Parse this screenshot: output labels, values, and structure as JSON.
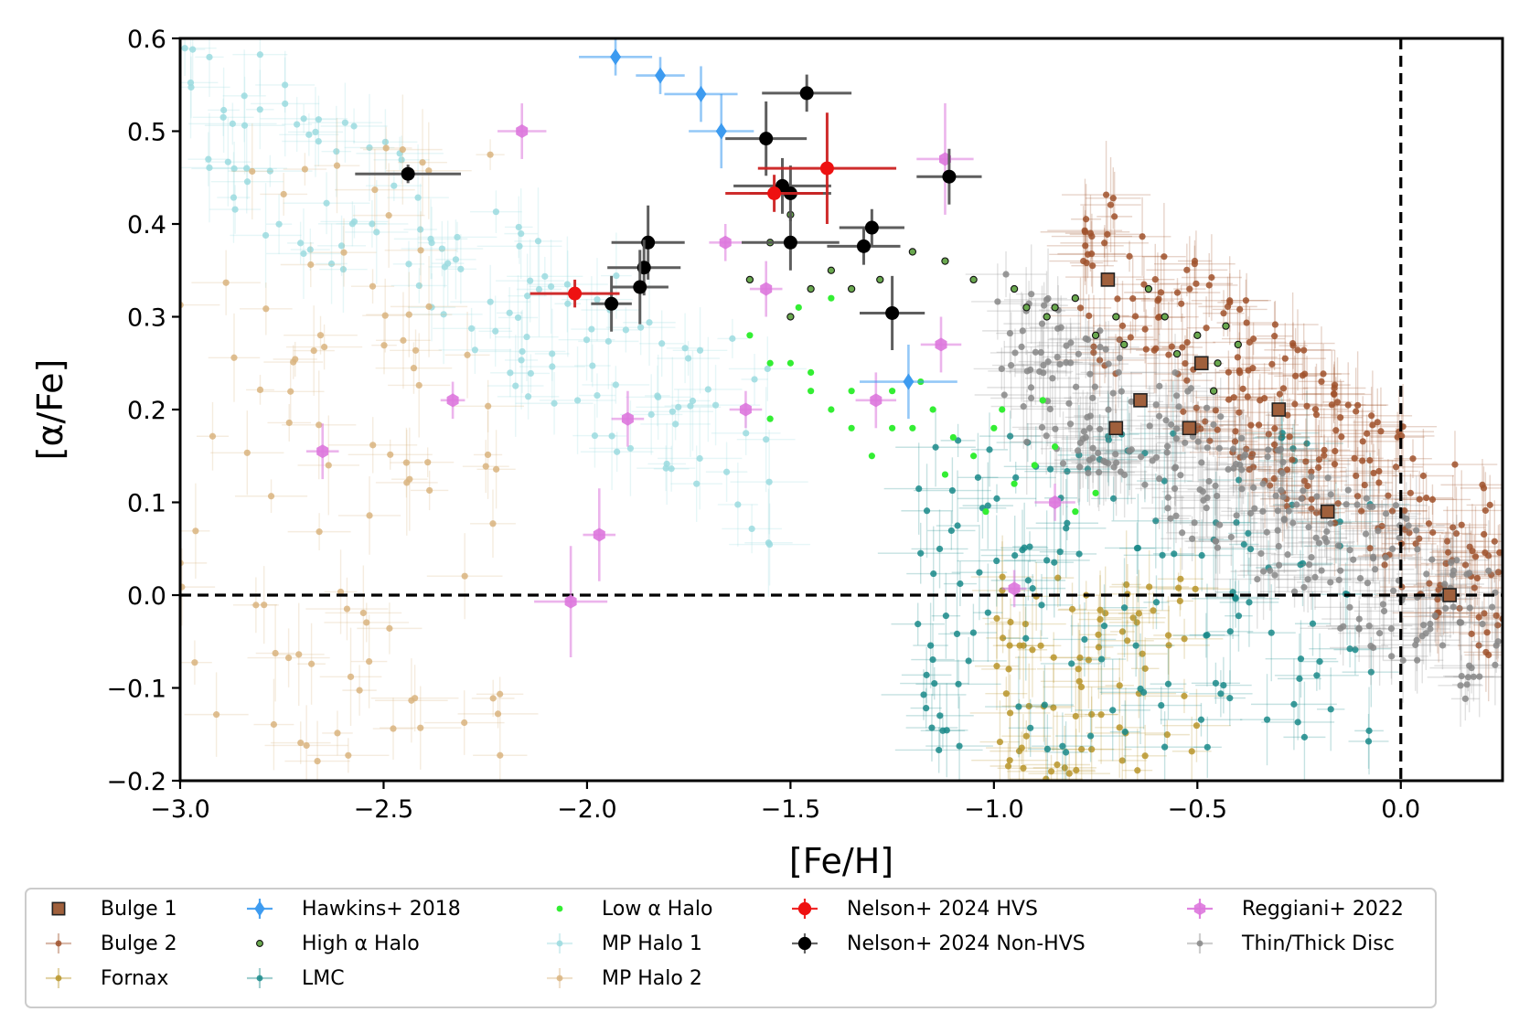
{
  "chart_data": {
    "type": "scatter",
    "title": "",
    "xlabel": "[Fe/H]",
    "ylabel": "[α/Fe]",
    "xlim": [
      -3.0,
      0.25
    ],
    "ylim": [
      -0.2,
      0.6
    ],
    "grid": false,
    "x_ticks": [
      -3.0,
      -2.5,
      -2.0,
      -1.5,
      -1.0,
      -0.5,
      0.0
    ],
    "x_tick_labels": [
      "−3.0",
      "−2.5",
      "−2.0",
      "−1.5",
      "−1.0",
      "−0.5",
      "0.0"
    ],
    "y_ticks": [
      -0.2,
      -0.1,
      0.0,
      0.1,
      0.2,
      0.3,
      0.4,
      0.5,
      0.6
    ],
    "y_tick_labels": [
      "−0.2",
      "−0.1",
      "0.0",
      "0.1",
      "0.2",
      "0.3",
      "0.4",
      "0.5",
      "0.6"
    ],
    "reference_lines": [
      {
        "orientation": "horizontal",
        "value": 0.0,
        "style": "dashed"
      },
      {
        "orientation": "vertical",
        "value": 0.0,
        "style": "dashed"
      }
    ],
    "legend_position": "below",
    "series": [
      {
        "name": "Bulge 1",
        "color": "#a0603c",
        "marker": "square",
        "points": [
          [
            -0.72,
            0.34
          ],
          [
            -0.49,
            0.25
          ],
          [
            -0.64,
            0.21
          ],
          [
            -0.3,
            0.2
          ],
          [
            -0.7,
            0.18
          ],
          [
            -0.52,
            0.18
          ],
          [
            -0.18,
            0.09
          ],
          [
            0.12,
            0.0
          ]
        ]
      },
      {
        "name": "Bulge 2",
        "color": "#a0522d",
        "marker": "circle-small",
        "cloud": {
          "x": [
            -0.8,
            0.25
          ],
          "y": [
            -0.02,
            0.4
          ],
          "count": 260,
          "seed": 11,
          "trend": "decreasing"
        }
      },
      {
        "name": "Fornax",
        "color": "#b8952a",
        "marker": "circle-small",
        "cloud": {
          "x": [
            -1.0,
            -0.5
          ],
          "y": [
            -0.2,
            0.02
          ],
          "count": 80,
          "seed": 23
        }
      },
      {
        "name": "Hawkins+ 2018",
        "color": "#3d9bf0",
        "marker": "diamond",
        "points": [
          [
            -1.93,
            0.58
          ],
          [
            -1.82,
            0.56
          ],
          [
            -1.72,
            0.54
          ],
          [
            -1.67,
            0.5
          ],
          [
            -1.21,
            0.23
          ]
        ],
        "xerr": [
          0.09,
          0.06,
          0.09,
          0.08,
          0.12
        ],
        "yerr": [
          0.02,
          0.02,
          0.03,
          0.04,
          0.04
        ]
      },
      {
        "name": "High α Halo",
        "color": "#6aa84f",
        "marker": "circle-outline",
        "points": [
          [
            -1.55,
            0.38
          ],
          [
            -1.5,
            0.41
          ],
          [
            -1.4,
            0.35
          ],
          [
            -1.35,
            0.33
          ],
          [
            -1.12,
            0.36
          ],
          [
            -1.05,
            0.34
          ],
          [
            -0.95,
            0.33
          ],
          [
            -0.85,
            0.31
          ],
          [
            -0.8,
            0.32
          ],
          [
            -0.75,
            0.28
          ],
          [
            -0.7,
            0.3
          ],
          [
            -0.68,
            0.27
          ],
          [
            -0.62,
            0.33
          ],
          [
            -0.58,
            0.3
          ],
          [
            -0.55,
            0.26
          ],
          [
            -0.5,
            0.28
          ],
          [
            -0.45,
            0.25
          ],
          [
            -0.46,
            0.22
          ],
          [
            -0.43,
            0.29
          ],
          [
            -0.4,
            0.27
          ],
          [
            -0.87,
            0.3
          ],
          [
            -0.92,
            0.31
          ],
          [
            -1.2,
            0.37
          ],
          [
            -1.28,
            0.34
          ],
          [
            -1.45,
            0.33
          ],
          [
            -1.5,
            0.3
          ],
          [
            -1.6,
            0.34
          ]
        ]
      },
      {
        "name": "LMC",
        "color": "#1a8a8a",
        "marker": "circle-small",
        "cloud": {
          "x": [
            -1.2,
            -0.05
          ],
          "y": [
            -0.17,
            0.18
          ],
          "count": 150,
          "seed": 37
        }
      },
      {
        "name": "Low α Halo",
        "color": "#33ee33",
        "marker": "circle-tiny",
        "points": [
          [
            -1.6,
            0.28
          ],
          [
            -1.55,
            0.25
          ],
          [
            -1.5,
            0.25
          ],
          [
            -1.45,
            0.22
          ],
          [
            -1.4,
            0.2
          ],
          [
            -1.35,
            0.18
          ],
          [
            -1.3,
            0.15
          ],
          [
            -1.25,
            0.22
          ],
          [
            -1.2,
            0.18
          ],
          [
            -1.15,
            0.2
          ],
          [
            -1.1,
            0.17
          ],
          [
            -1.05,
            0.15
          ],
          [
            -1.0,
            0.18
          ],
          [
            -0.95,
            0.12
          ],
          [
            -0.9,
            0.14
          ],
          [
            -0.85,
            0.16
          ],
          [
            -0.8,
            0.09
          ],
          [
            -0.75,
            0.11
          ],
          [
            -1.35,
            0.22
          ],
          [
            -1.45,
            0.24
          ],
          [
            -1.55,
            0.19
          ],
          [
            -1.25,
            0.18
          ],
          [
            -1.4,
            0.32
          ],
          [
            -1.48,
            0.31
          ],
          [
            -0.98,
            0.2
          ],
          [
            -1.02,
            0.09
          ],
          [
            -1.12,
            0.13
          ],
          [
            -0.88,
            0.21
          ],
          [
            -1.18,
            0.23
          ]
        ]
      },
      {
        "name": "MP Halo 1",
        "color": "#9bdadf",
        "marker": "circle-small",
        "cloud": {
          "x": [
            -3.0,
            -1.55
          ],
          "y": [
            0.12,
            0.58
          ],
          "count": 140,
          "seed": 53,
          "trend": "decreasing"
        }
      },
      {
        "name": "MP Halo 2",
        "color": "#d9b47f",
        "marker": "circle-small",
        "cloud": {
          "x": [
            -3.0,
            -2.2
          ],
          "y": [
            -0.18,
            0.5
          ],
          "count": 90,
          "seed": 71
        }
      },
      {
        "name": "Nelson+ 2024 HVS",
        "color": "#ee1111",
        "marker": "circle-large",
        "points": [
          [
            -2.03,
            0.325
          ],
          [
            -1.54,
            0.433
          ],
          [
            -1.41,
            0.46
          ]
        ],
        "xerr": [
          0.11,
          0.12,
          0.17
        ],
        "yerr": [
          0.015,
          0.02,
          0.06
        ]
      },
      {
        "name": "Nelson+ 2024 Non-HVS",
        "color": "#000000",
        "marker": "circle-large",
        "points": [
          [
            -2.44,
            0.454
          ],
          [
            -1.46,
            0.541
          ],
          [
            -1.56,
            0.492
          ],
          [
            -1.52,
            0.441
          ],
          [
            -1.5,
            0.433
          ],
          [
            -1.11,
            0.451
          ],
          [
            -1.85,
            0.38
          ],
          [
            -1.5,
            0.38
          ],
          [
            -1.3,
            0.396
          ],
          [
            -1.32,
            0.376
          ],
          [
            -1.86,
            0.353
          ],
          [
            -1.87,
            0.332
          ],
          [
            -1.94,
            0.314
          ],
          [
            -1.25,
            0.304
          ]
        ],
        "xerr": [
          0.13,
          0.11,
          0.1,
          0.12,
          0.1,
          0.08,
          0.09,
          0.12,
          0.08,
          0.09,
          0.09,
          0.07,
          0.05,
          0.08
        ],
        "yerr": [
          0.01,
          0.02,
          0.04,
          0.03,
          0.03,
          0.03,
          0.04,
          0.03,
          0.02,
          0.02,
          0.03,
          0.04,
          0.03,
          0.04
        ]
      },
      {
        "name": "Reggiani+ 2022",
        "color": "#dd77dd",
        "marker": "hexagon",
        "points": [
          [
            -2.16,
            0.5
          ],
          [
            -1.66,
            0.38
          ],
          [
            -1.56,
            0.33
          ],
          [
            -1.12,
            0.47
          ],
          [
            -1.13,
            0.27
          ],
          [
            -2.33,
            0.21
          ],
          [
            -1.61,
            0.2
          ],
          [
            -1.9,
            0.19
          ],
          [
            -1.29,
            0.21
          ],
          [
            -2.65,
            0.155
          ],
          [
            -0.85,
            0.1
          ],
          [
            -1.97,
            0.065
          ],
          [
            -2.04,
            -0.007
          ],
          [
            -0.95,
            0.007
          ]
        ],
        "xerr": [
          0.06,
          0.04,
          0.04,
          0.07,
          0.05,
          0.03,
          0.04,
          0.04,
          0.05,
          0.04,
          0.05,
          0.04,
          0.09,
          0.03
        ],
        "yerr": [
          0.03,
          0.02,
          0.03,
          0.06,
          0.03,
          0.02,
          0.02,
          0.03,
          0.03,
          0.03,
          0.02,
          0.05,
          0.06,
          0.02
        ]
      },
      {
        "name": "Thin/Thick Disc",
        "color": "#888888",
        "marker": "circle-small",
        "cloud": {
          "x": [
            -1.0,
            0.25
          ],
          "y": [
            -0.08,
            0.3
          ],
          "count": 300,
          "seed": 89,
          "trend": "decreasing"
        }
      }
    ],
    "legend_columns": [
      [
        "Bulge 1",
        "Bulge 2",
        "Fornax"
      ],
      [
        "Hawkins+ 2018",
        "High α Halo",
        "LMC"
      ],
      [
        "Low α Halo",
        "MP Halo 1",
        "MP Halo 2"
      ],
      [
        "Nelson+ 2024 HVS",
        "Nelson+ 2024 Non-HVS"
      ],
      [
        "Reggiani+ 2022",
        "Thin/Thick Disc"
      ]
    ]
  }
}
